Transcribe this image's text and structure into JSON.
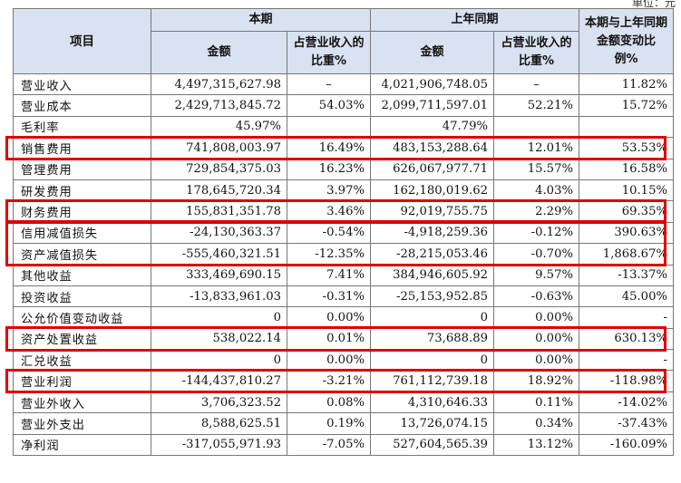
{
  "unit_label": "单位：元",
  "header": {
    "item": "项目",
    "current_period": "本期",
    "prior_period": "上年同期",
    "change": "本期与上年同期金额变动比例%",
    "amount": "金额",
    "ratio": "占营业收入的比重%"
  },
  "rows": [
    {
      "label": "营业收入",
      "cur": "4,497,315,627.98",
      "cur_pct": "–",
      "prev": "4,021,906,748.05",
      "prev_pct": "–",
      "change": "11.82%"
    },
    {
      "label": "营业成本",
      "cur": "2,429,713,845.72",
      "cur_pct": "54.03%",
      "prev": "2,099,711,597.01",
      "prev_pct": "52.21%",
      "change": "15.72%"
    },
    {
      "label": "毛利率",
      "cur": "45.97%",
      "cur_pct": "",
      "prev": "47.79%",
      "prev_pct": "",
      "change": ""
    },
    {
      "label": "销售费用",
      "cur": "741,808,003.97",
      "cur_pct": "16.49%",
      "prev": "483,153,288.64",
      "prev_pct": "12.01%",
      "change": "53.53%"
    },
    {
      "label": "管理费用",
      "cur": "729,854,375.03",
      "cur_pct": "16.23%",
      "prev": "626,067,977.71",
      "prev_pct": "15.57%",
      "change": "16.58%"
    },
    {
      "label": "研发费用",
      "cur": "178,645,720.34",
      "cur_pct": "3.97%",
      "prev": "162,180,019.62",
      "prev_pct": "4.03%",
      "change": "10.15%"
    },
    {
      "label": "财务费用",
      "cur": "155,831,351.78",
      "cur_pct": "3.46%",
      "prev": "92,019,755.75",
      "prev_pct": "2.29%",
      "change": "69.35%"
    },
    {
      "label": "信用减值损失",
      "cur": "-24,130,363.37",
      "cur_pct": "-0.54%",
      "prev": "-4,918,259.36",
      "prev_pct": "-0.12%",
      "change": "390.63%"
    },
    {
      "label": "资产减值损失",
      "cur": "-555,460,321.51",
      "cur_pct": "-12.35%",
      "prev": "-28,215,053.46",
      "prev_pct": "-0.70%",
      "change": "1,868.67%"
    },
    {
      "label": "其他收益",
      "cur": "333,469,690.15",
      "cur_pct": "7.41%",
      "prev": "384,946,605.92",
      "prev_pct": "9.57%",
      "change": "-13.37%"
    },
    {
      "label": "投资收益",
      "cur": "-13,833,961.03",
      "cur_pct": "-0.31%",
      "prev": "-25,153,952.85",
      "prev_pct": "-0.63%",
      "change": "45.00%"
    },
    {
      "label": "公允价值变动收益",
      "cur": "0",
      "cur_pct": "0.00%",
      "prev": "0",
      "prev_pct": "0.00%",
      "change": "-"
    },
    {
      "label": "资产处置收益",
      "cur": "538,022.14",
      "cur_pct": "0.01%",
      "prev": "73,688.89",
      "prev_pct": "0.00%",
      "change": "630.13%"
    },
    {
      "label": "汇兑收益",
      "cur": "0",
      "cur_pct": "0.00%",
      "prev": "0",
      "prev_pct": "0.00%",
      "change": "-"
    },
    {
      "label": "营业利润",
      "cur": "-144,437,810.27",
      "cur_pct": "-3.21%",
      "prev": "761,112,739.18",
      "prev_pct": "18.92%",
      "change": "-118.98%"
    },
    {
      "label": "营业外收入",
      "cur": "3,706,323.52",
      "cur_pct": "0.08%",
      "prev": "4,310,646.33",
      "prev_pct": "0.11%",
      "change": "-14.02%"
    },
    {
      "label": "营业外支出",
      "cur": "8,588,625.51",
      "cur_pct": "0.19%",
      "prev": "13,726,074.15",
      "prev_pct": "0.34%",
      "change": "-37.43%"
    },
    {
      "label": "净利润",
      "cur": "-317,055,971.93",
      "cur_pct": "-7.05%",
      "prev": "527,604,565.39",
      "prev_pct": "13.12%",
      "change": "-160.09%"
    }
  ],
  "highlight_color": "#e00000"
}
